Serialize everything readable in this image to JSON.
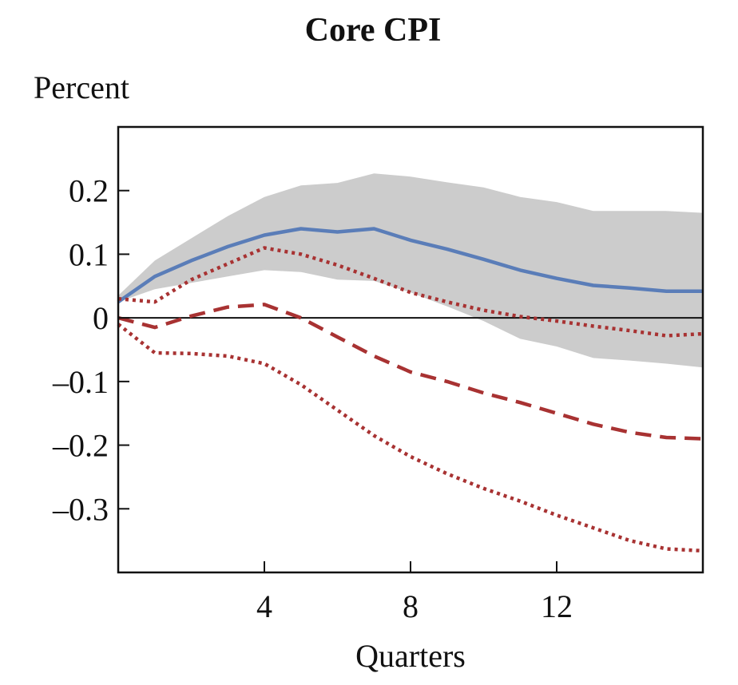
{
  "chart_data": {
    "type": "line",
    "title": "Core CPI",
    "ylabel": "Percent",
    "xlabel": "Quarters",
    "xlim": [
      0,
      16
    ],
    "ylim": [
      -0.4,
      0.3
    ],
    "xticks": [
      4,
      8,
      12
    ],
    "xtick_labels": [
      "4",
      "8",
      "12"
    ],
    "yticks": [
      0.2,
      0.1,
      0,
      -0.1,
      -0.2,
      -0.3
    ],
    "ytick_labels": [
      "0.2",
      "0.1",
      "0",
      "–0.1",
      "–0.2",
      "–0.3"
    ],
    "zero_line": true,
    "band": {
      "name": "confidence band",
      "color": "#cccccc",
      "x": [
        0,
        1,
        2,
        3,
        4,
        5,
        6,
        7,
        8,
        9,
        10,
        11,
        12,
        13,
        14,
        15,
        16
      ],
      "upper": [
        0.035,
        0.09,
        0.125,
        0.16,
        0.19,
        0.208,
        0.212,
        0.227,
        0.222,
        0.213,
        0.205,
        0.19,
        0.182,
        0.168,
        0.168,
        0.168,
        0.165
      ],
      "lower": [
        0.025,
        0.045,
        0.055,
        0.065,
        0.075,
        0.072,
        0.06,
        0.058,
        0.04,
        0.018,
        -0.005,
        -0.033,
        -0.045,
        -0.063,
        -0.067,
        -0.072,
        -0.078
      ]
    },
    "series": [
      {
        "name": "blue solid",
        "color": "#5a7db8",
        "style": "solid",
        "x": [
          0,
          1,
          2,
          3,
          4,
          5,
          6,
          7,
          8,
          9,
          10,
          11,
          12,
          13,
          14,
          15,
          16
        ],
        "values": [
          0.025,
          0.065,
          0.09,
          0.112,
          0.13,
          0.14,
          0.135,
          0.14,
          0.122,
          0.108,
          0.092,
          0.075,
          0.062,
          0.051,
          0.047,
          0.042,
          0.042
        ]
      },
      {
        "name": "red dashed",
        "color": "#a83232",
        "style": "dashed",
        "x": [
          0,
          1,
          2,
          3,
          4,
          5,
          6,
          7,
          8,
          9,
          10,
          11,
          12,
          13,
          14,
          15,
          16
        ],
        "values": [
          0.0,
          -0.015,
          0.003,
          0.017,
          0.021,
          0.0,
          -0.03,
          -0.06,
          -0.085,
          -0.1,
          -0.118,
          -0.133,
          -0.15,
          -0.167,
          -0.18,
          -0.188,
          -0.19
        ]
      },
      {
        "name": "red dotted upper",
        "color": "#a83232",
        "style": "dotted",
        "x": [
          0,
          1,
          2,
          3,
          4,
          5,
          6,
          7,
          8,
          9,
          10,
          11,
          12,
          13,
          14,
          15,
          16
        ],
        "values": [
          0.03,
          0.025,
          0.06,
          0.085,
          0.11,
          0.1,
          0.083,
          0.062,
          0.04,
          0.025,
          0.012,
          0.002,
          -0.005,
          -0.013,
          -0.02,
          -0.028,
          -0.025
        ]
      },
      {
        "name": "red dotted lower",
        "color": "#a83232",
        "style": "dotted",
        "x": [
          0,
          1,
          2,
          3,
          4,
          5,
          6,
          7,
          8,
          9,
          10,
          11,
          12,
          13,
          14,
          15,
          16
        ],
        "values": [
          -0.01,
          -0.055,
          -0.056,
          -0.06,
          -0.072,
          -0.105,
          -0.145,
          -0.185,
          -0.218,
          -0.245,
          -0.268,
          -0.288,
          -0.31,
          -0.33,
          -0.35,
          -0.363,
          -0.366
        ]
      }
    ]
  }
}
